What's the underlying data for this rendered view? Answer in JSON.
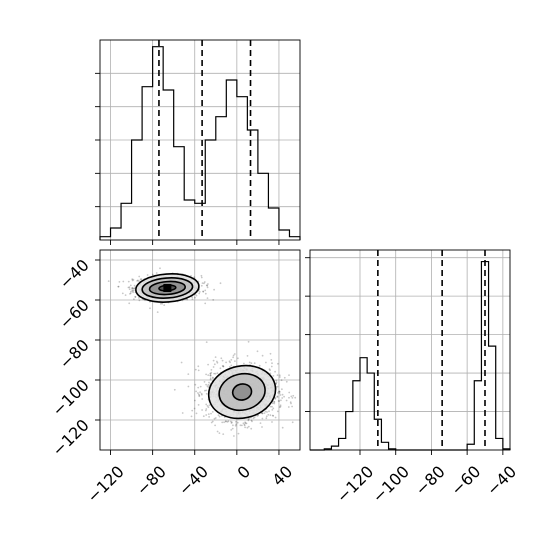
{
  "chart_data": [
    {
      "type": "histogram",
      "panel": "top-left",
      "variable_index": 0,
      "bins": [
        -130,
        -120,
        -110,
        -100,
        -90,
        -80,
        -70,
        -60,
        -50,
        -40,
        -30,
        -20,
        -10,
        0,
        10,
        20,
        30,
        40,
        50,
        60
      ],
      "counts": [
        5,
        18,
        55,
        150,
        230,
        290,
        225,
        140,
        60,
        55,
        150,
        185,
        240,
        215,
        165,
        100,
        48,
        15,
        5
      ],
      "ylim": [
        0,
        300
      ],
      "xlim": [
        -130,
        60
      ],
      "quantiles": [
        -74,
        -33,
        13
      ],
      "grid": true
    },
    {
      "type": "scatter",
      "panel": "bottom-left",
      "x_variable": 0,
      "y_variable": 1,
      "xlim": [
        -130,
        60
      ],
      "ylim": [
        -135,
        -35
      ],
      "xticks": [
        -120,
        -80,
        -40,
        0,
        40
      ],
      "yticks": [
        -40,
        -60,
        -80,
        -100,
        -120
      ],
      "clusters": [
        {
          "center": [
            -66,
            -54
          ],
          "sd": [
            16,
            3
          ]
        },
        {
          "center": [
            5,
            -106
          ],
          "sd": [
            17,
            7
          ]
        }
      ],
      "contours": [
        {
          "center": [
            -66,
            -54
          ],
          "radii": [
            [
              8,
              1.4
            ],
            [
              17,
              3.2
            ],
            [
              24,
              5
            ],
            [
              30,
              7
            ]
          ]
        },
        {
          "center": [
            5,
            -106
          ],
          "radii": [
            [
              9,
              4
            ],
            [
              22,
              9
            ],
            [
              32,
              13
            ]
          ]
        }
      ],
      "grid": true
    },
    {
      "type": "histogram",
      "panel": "bottom-right",
      "variable_index": 1,
      "bins": [
        -148,
        -144,
        -140,
        -136,
        -132,
        -128,
        -124,
        -120,
        -116,
        -112,
        -108,
        -104,
        -100,
        -96,
        -92,
        -88,
        -84,
        -80,
        -76,
        -72,
        -68,
        -64,
        -60,
        -56,
        -52,
        -48,
        -44,
        -40,
        -36
      ],
      "counts": [
        0,
        0,
        3,
        10,
        30,
        100,
        180,
        240,
        200,
        80,
        20,
        3,
        0,
        0,
        0,
        0,
        0,
        0,
        0,
        0,
        0,
        0,
        15,
        180,
        490,
        270,
        30,
        3
      ],
      "ylim": [
        0,
        520
      ],
      "xlim": [
        -148,
        -36
      ],
      "xticks": [
        -120,
        -100,
        -80,
        -60,
        -40
      ],
      "quantiles": [
        -110,
        -74,
        -50
      ],
      "grid": true
    }
  ]
}
